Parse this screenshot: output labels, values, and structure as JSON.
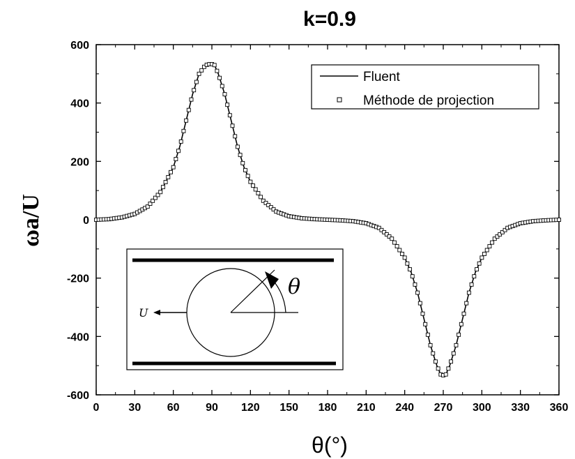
{
  "chart_data": {
    "type": "line",
    "title": "k=0.9",
    "xlabel": "θ(°)",
    "ylabel": "ωa/U",
    "xlim": [
      0,
      360
    ],
    "ylim": [
      -600,
      600
    ],
    "xticks": [
      0,
      30,
      60,
      90,
      120,
      150,
      180,
      210,
      240,
      270,
      300,
      330,
      360
    ],
    "yticks": [
      600,
      400,
      200,
      0,
      -200,
      -400,
      -600
    ],
    "grid": false,
    "legend_position": "top-right",
    "series": [
      {
        "name": "Fluent",
        "style": "solid-line",
        "color": "#000000",
        "x": [
          0,
          10,
          20,
          30,
          40,
          50,
          60,
          65,
          70,
          75,
          80,
          85,
          88,
          90,
          92,
          95,
          100,
          105,
          110,
          115,
          120,
          130,
          140,
          150,
          160,
          170,
          180,
          190,
          200,
          210,
          220,
          230,
          240,
          245,
          250,
          255,
          260,
          265,
          268,
          270,
          272,
          275,
          280,
          285,
          290,
          295,
          300,
          310,
          320,
          330,
          340,
          350,
          360
        ],
        "y": [
          0,
          2,
          8,
          20,
          45,
          95,
          180,
          250,
          340,
          430,
          500,
          530,
          533,
          533,
          530,
          500,
          430,
          340,
          250,
          180,
          130,
          65,
          28,
          12,
          5,
          2,
          0,
          -2,
          -5,
          -12,
          -28,
          -65,
          -130,
          -180,
          -250,
          -340,
          -430,
          -500,
          -530,
          -533,
          -530,
          -500,
          -430,
          -340,
          -250,
          -180,
          -130,
          -65,
          -28,
          -12,
          -5,
          -2,
          0
        ]
      },
      {
        "name": "Méthode de projection",
        "style": "open-square-markers",
        "color": "#000000",
        "x": [
          0,
          10,
          20,
          30,
          40,
          50,
          60,
          65,
          70,
          75,
          80,
          85,
          88,
          90,
          92,
          95,
          100,
          105,
          110,
          115,
          120,
          130,
          140,
          150,
          160,
          170,
          180,
          190,
          200,
          210,
          220,
          230,
          240,
          245,
          250,
          255,
          260,
          265,
          268,
          270,
          272,
          275,
          280,
          285,
          290,
          295,
          300,
          310,
          320,
          330,
          340,
          350,
          360
        ],
        "y": [
          0,
          2,
          8,
          20,
          45,
          95,
          180,
          250,
          340,
          430,
          500,
          530,
          533,
          533,
          530,
          500,
          430,
          340,
          250,
          180,
          130,
          65,
          28,
          12,
          5,
          2,
          0,
          -2,
          -5,
          -12,
          -28,
          -65,
          -130,
          -180,
          -250,
          -340,
          -430,
          -500,
          -530,
          -533,
          -530,
          -500,
          -430,
          -340,
          -250,
          -180,
          -130,
          -65,
          -28,
          -12,
          -5,
          -2,
          0
        ]
      }
    ]
  },
  "inset": {
    "velocity_label": "U",
    "angle_label": "θ"
  }
}
